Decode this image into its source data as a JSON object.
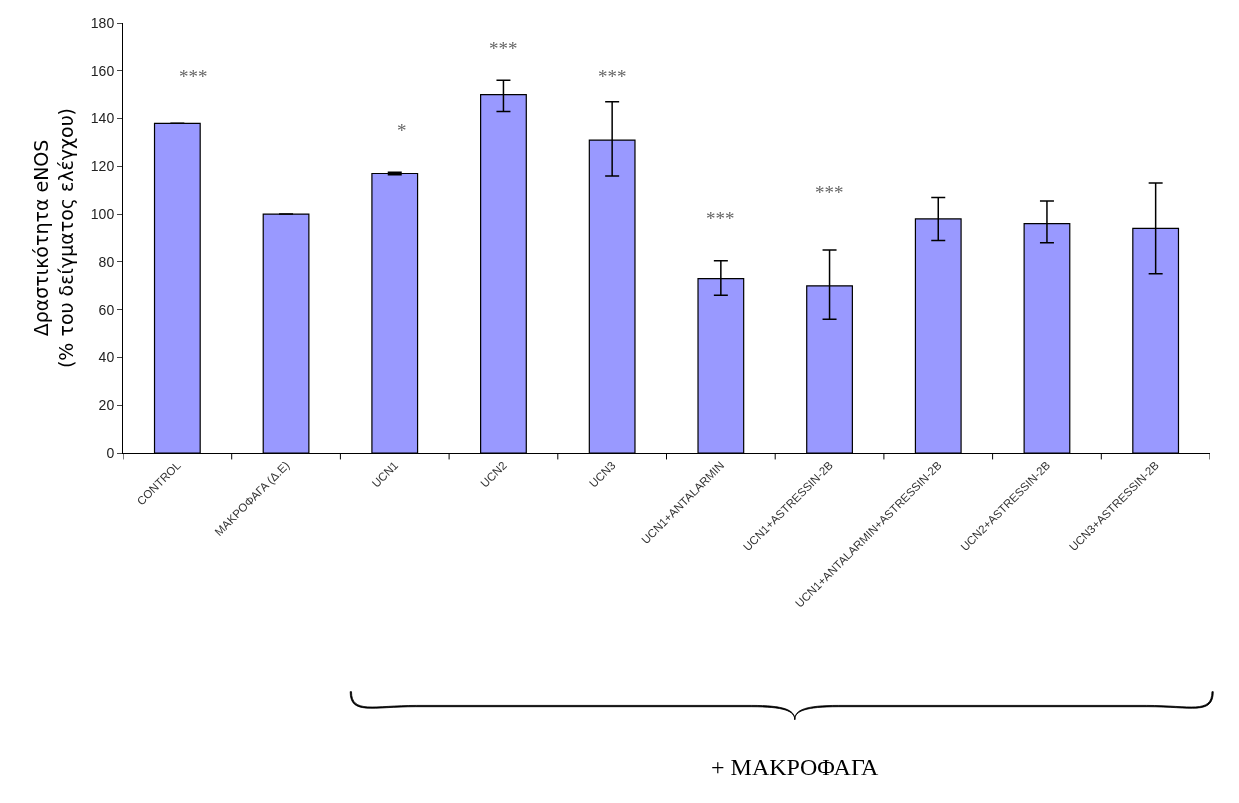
{
  "chart_data": {
    "type": "bar",
    "ylabel": "Δραστικότητα eNOS\n(% του δείγματος ελέγχου)",
    "categories": [
      "CONTROL",
      "ΜΑΚΡΟΦΑΓΑ (Δ.Ε)",
      "UCN1",
      "UCN2",
      "UCN3",
      "UCN1+ANTALARMIN",
      "UCN1+ASTRESSIN-2B",
      "UCN1+ANTALARMIN+ASTRESSIN-2B",
      "UCN2+ASTRESSIN-2B",
      "UCN3+ASTRESSIN-2B"
    ],
    "values": [
      138,
      100,
      117,
      150,
      131,
      73,
      70,
      98,
      96,
      94
    ],
    "errors": [
      null,
      null,
      [
        116.5,
        117.5
      ],
      [
        143,
        156
      ],
      [
        116,
        147
      ],
      [
        66,
        80.5
      ],
      [
        56,
        85
      ],
      [
        89,
        107
      ],
      [
        88,
        105.5
      ],
      [
        75,
        113
      ]
    ],
    "color": "#9999ff",
    "ylim": [
      0,
      180
    ],
    "yticks": [
      0,
      20,
      40,
      60,
      80,
      100,
      120,
      140,
      160,
      180
    ],
    "annotations": [
      "***",
      "*",
      "***",
      "***",
      "***",
      "***",
      "+ ΜΑΚΡΟΦΑΓΑ"
    ]
  }
}
